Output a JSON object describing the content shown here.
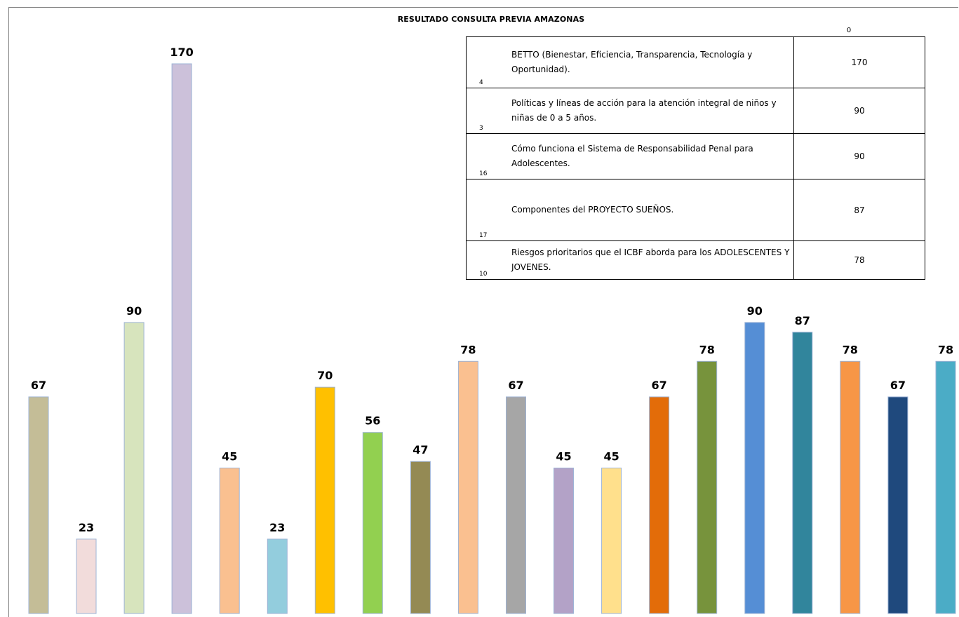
{
  "title": "RESULTADO CONSULTA PREVIA AMAZONAS",
  "table": {
    "header_value": "0",
    "rows": [
      {
        "id": "4",
        "text": "BETTO (Bienestar, Eficiencia, Transparencia, Tecnología y Oportunidad).",
        "value": "170"
      },
      {
        "id": "3",
        "text": "Políticas y líneas de acción para la atención integral de niños y niñas de 0 a 5 años.",
        "value": "90"
      },
      {
        "id": "16",
        "text": "Cómo funciona el Sistema de Responsabilidad Penal para Adolescentes.",
        "value": "90"
      },
      {
        "id": "17",
        "text": "Componentes del PROYECTO SUEÑOS.",
        "value": "87"
      },
      {
        "id": "10",
        "text": "Riesgos prioritarios que el ICBF aborda para los ADOLESCENTES Y JOVENES.",
        "value": "78"
      }
    ]
  },
  "chart_data": {
    "type": "bar",
    "title": "RESULTADO CONSULTA PREVIA AMAZONAS",
    "values": [
      67,
      23,
      90,
      170,
      45,
      23,
      70,
      56,
      47,
      78,
      67,
      45,
      45,
      67,
      78,
      90,
      87,
      78,
      67,
      78
    ],
    "colors": [
      "#c4bd97",
      "#f2dcdb",
      "#d7e4bd",
      "#ccc1da",
      "#fac090",
      "#93cddd",
      "#ffc000",
      "#92d050",
      "#948a54",
      "#fac090",
      "#a6a6a6",
      "#b3a2c7",
      "#ffe08c",
      "#e36c09",
      "#77933c",
      "#558ed5",
      "#31859c",
      "#f79646",
      "#1f497d",
      "#4bacc6"
    ],
    "ylim": [
      0,
      170
    ]
  }
}
